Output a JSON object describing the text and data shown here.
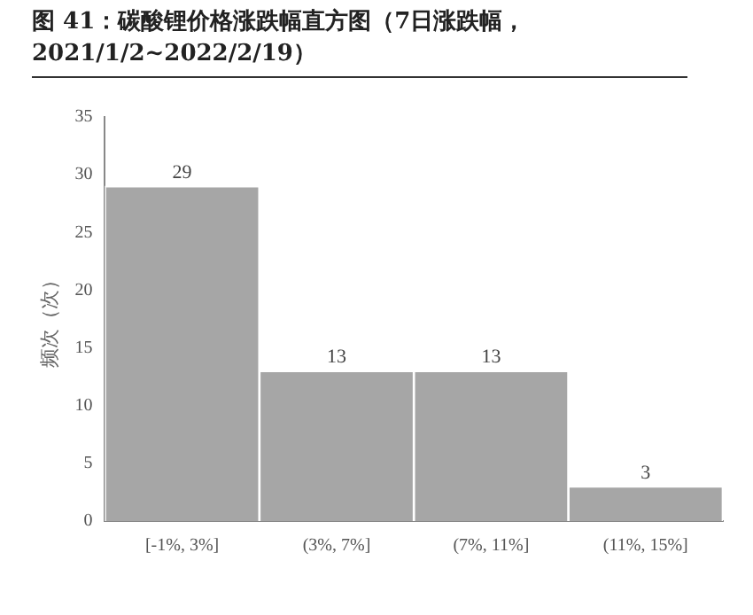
{
  "chart_data": {
    "type": "bar",
    "title": "图 41：碳酸锂价格涨跌幅直方图（7日涨跌幅，2021/1/2~2022/2/19）",
    "ylabel": "频次（次）",
    "categories": [
      "[-1%, 3%]",
      "(3%, 7%]",
      "(7%, 11%]",
      "(11%, 15%]"
    ],
    "values": [
      29,
      13,
      13,
      3
    ],
    "color": "#a6a6a6",
    "ylim": [
      0,
      35
    ],
    "yticks": [
      0,
      5,
      10,
      15,
      20,
      25,
      30,
      35
    ],
    "grid": false,
    "legend": false,
    "data_labels": true
  }
}
